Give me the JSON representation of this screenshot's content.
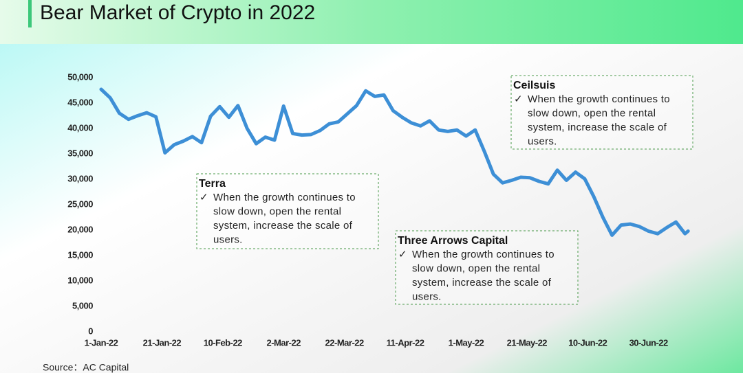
{
  "chart_data": {
    "type": "line",
    "title": "Bear Market of Crypto in 2022",
    "source": "Source：AC Capital",
    "x": [
      "2022-01-01",
      "2022-01-04",
      "2022-01-07",
      "2022-01-10",
      "2022-01-13",
      "2022-01-16",
      "2022-01-19",
      "2022-01-22",
      "2022-01-25",
      "2022-01-28",
      "2022-01-31",
      "2022-02-03",
      "2022-02-06",
      "2022-02-09",
      "2022-02-12",
      "2022-02-15",
      "2022-02-18",
      "2022-02-21",
      "2022-02-24",
      "2022-02-27",
      "2022-03-02",
      "2022-03-05",
      "2022-03-08",
      "2022-03-11",
      "2022-03-14",
      "2022-03-17",
      "2022-03-20",
      "2022-03-23",
      "2022-03-26",
      "2022-03-29",
      "2022-04-01",
      "2022-04-04",
      "2022-04-07",
      "2022-04-10",
      "2022-04-13",
      "2022-04-16",
      "2022-04-19",
      "2022-04-22",
      "2022-04-25",
      "2022-04-28",
      "2022-05-01",
      "2022-05-04",
      "2022-05-07",
      "2022-05-10",
      "2022-05-13",
      "2022-05-16",
      "2022-05-19",
      "2022-05-22",
      "2022-05-25",
      "2022-05-28",
      "2022-05-31",
      "2022-06-03",
      "2022-06-06",
      "2022-06-09",
      "2022-06-12",
      "2022-06-15",
      "2022-06-18",
      "2022-06-21",
      "2022-06-24",
      "2022-06-27",
      "2022-06-30",
      "2022-07-03",
      "2022-07-06",
      "2022-07-09",
      "2022-07-12",
      "2022-07-13"
    ],
    "series": [
      {
        "color": "#3d8fd6",
        "values": [
          47700,
          46000,
          43000,
          41800,
          42500,
          43100,
          42300,
          35200,
          36800,
          37500,
          38400,
          37200,
          42400,
          44300,
          42200,
          44500,
          40000,
          37000,
          38300,
          37700,
          44400,
          39000,
          38700,
          38800,
          39600,
          40900,
          41300,
          42900,
          44500,
          47400,
          46300,
          46600,
          43500,
          42200,
          41100,
          40500,
          41500,
          39700,
          39400,
          39700,
          38500,
          39700,
          35500,
          31000,
          29300,
          29800,
          30400,
          30300,
          29600,
          29100,
          31800,
          29800,
          31400,
          30100,
          26600,
          22500,
          19000,
          21000,
          21200,
          20700,
          19800,
          19300,
          20500,
          21600,
          19300,
          19800
        ]
      }
    ],
    "xlim": [
      "2022-01-01",
      "2022-07-15"
    ],
    "xticks": [
      {
        "value": "2022-01-01",
        "label": "1-Jan-22"
      },
      {
        "value": "2022-01-21",
        "label": "21-Jan-22"
      },
      {
        "value": "2022-02-10",
        "label": "10-Feb-22"
      },
      {
        "value": "2022-03-02",
        "label": "2-Mar-22"
      },
      {
        "value": "2022-03-22",
        "label": "22-Mar-22"
      },
      {
        "value": "2022-04-11",
        "label": "11-Apr-22"
      },
      {
        "value": "2022-05-01",
        "label": "1-May-22"
      },
      {
        "value": "2022-05-21",
        "label": "21-May-22"
      },
      {
        "value": "2022-06-10",
        "label": "10-Jun-22"
      },
      {
        "value": "2022-06-30",
        "label": "30-Jun-22"
      }
    ],
    "ylim": [
      0,
      50000
    ],
    "yticks": [
      0,
      {
        "value": 5000,
        "label": "5,000"
      },
      {
        "value": 10000,
        "label": "10,000"
      },
      {
        "value": 15000,
        "label": "15,000"
      },
      {
        "value": 20000,
        "label": "20,000"
      },
      {
        "value": 25000,
        "label": "25,000"
      },
      {
        "value": 30000,
        "label": "30,000"
      },
      {
        "value": 35000,
        "label": "35,000"
      },
      {
        "value": 40000,
        "label": "40,000"
      },
      {
        "value": 45000,
        "label": "45,000"
      },
      {
        "value": 50000,
        "label": "50,000"
      }
    ],
    "annotations": [
      {
        "title": "Terra",
        "bullet": "✓",
        "lines": [
          "When the growth continues to",
          "slow down, open the rental",
          "system,  increase the scale of",
          "users."
        ]
      },
      {
        "title": "Three Arrows Capital",
        "bullet": "✓",
        "lines": [
          "When the growth continues to",
          "slow down, open the rental",
          "system,  increase the scale of",
          "users."
        ]
      },
      {
        "title": "Ceilsuis",
        "bullet": "✓",
        "lines": [
          "When the growth continues to",
          "slow down, open the rental",
          "system,  increase the scale of",
          "users."
        ]
      }
    ]
  }
}
